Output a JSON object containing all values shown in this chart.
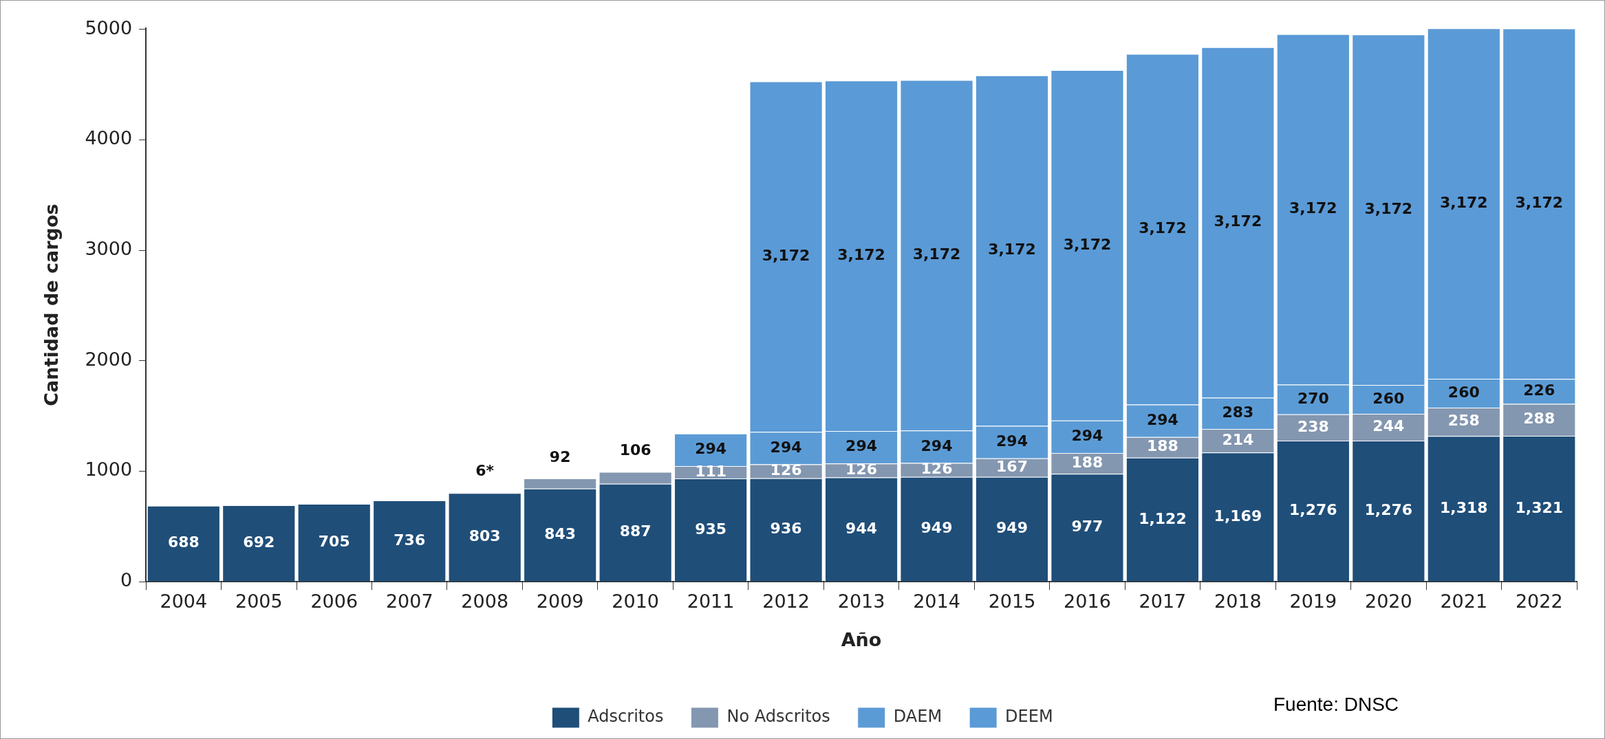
{
  "chart_data": {
    "type": "bar",
    "stacked": true,
    "xlabel": "Año",
    "ylabel": "Cantidad de cargos",
    "categories": [
      "2004",
      "2005",
      "2006",
      "2007",
      "2008",
      "2009",
      "2010",
      "2011",
      "2012",
      "2013",
      "2014",
      "2015",
      "2016",
      "2017",
      "2018",
      "2019",
      "2020",
      "2021",
      "2022"
    ],
    "series": [
      {
        "name": "Adscritos",
        "color": "#1f4e79",
        "values": [
          688,
          692,
          705,
          736,
          803,
          843,
          887,
          935,
          936,
          944,
          949,
          949,
          977,
          1122,
          1169,
          1276,
          1276,
          1318,
          1321
        ],
        "value_labels": [
          "688",
          "692",
          "705",
          "736",
          "803",
          "843",
          "887",
          "935",
          "936",
          "944",
          "949",
          "949",
          "977",
          "1,122",
          "1,169",
          "1,276",
          "1,276",
          "1,318",
          "1,321"
        ]
      },
      {
        "name": "No Adscritos",
        "color": "#8497b0",
        "values": [
          null,
          null,
          null,
          null,
          6,
          92,
          106,
          111,
          126,
          126,
          126,
          167,
          188,
          188,
          214,
          238,
          244,
          258,
          288
        ],
        "value_labels": [
          null,
          null,
          null,
          null,
          "6*",
          "92",
          "106",
          "111",
          "126",
          "126",
          "126",
          "167",
          "188",
          "188",
          "214",
          "238",
          "244",
          "258",
          "288"
        ]
      },
      {
        "name": "DAEM",
        "color": "#5b9bd5",
        "values": [
          null,
          null,
          null,
          null,
          null,
          null,
          null,
          294,
          294,
          294,
          294,
          294,
          294,
          294,
          283,
          270,
          260,
          260,
          226
        ],
        "value_labels": [
          null,
          null,
          null,
          null,
          null,
          null,
          null,
          "294",
          "294",
          "294",
          "294",
          "294",
          "294",
          "294",
          "283",
          "270",
          "260",
          "260",
          "226"
        ]
      },
      {
        "name": "DEEM",
        "color": "#5a9ad6",
        "values": [
          null,
          null,
          null,
          null,
          null,
          null,
          null,
          null,
          3172,
          3172,
          3172,
          3172,
          3172,
          3172,
          3172,
          3172,
          3172,
          3172,
          3172
        ],
        "value_labels": [
          null,
          null,
          null,
          null,
          null,
          null,
          null,
          null,
          "3,172",
          "3,172",
          "3,172",
          "3,172",
          "3,172",
          "3,172",
          "3,172",
          "3,172",
          "3,172",
          "3,172",
          "3,172"
        ]
      }
    ],
    "ylim": [
      0,
      5010
    ],
    "yticks": [
      0,
      1000,
      2000,
      3000,
      4000,
      5000
    ],
    "grid": false,
    "legend": "bottom",
    "annotations": [
      "Fuente: DNSC"
    ]
  }
}
